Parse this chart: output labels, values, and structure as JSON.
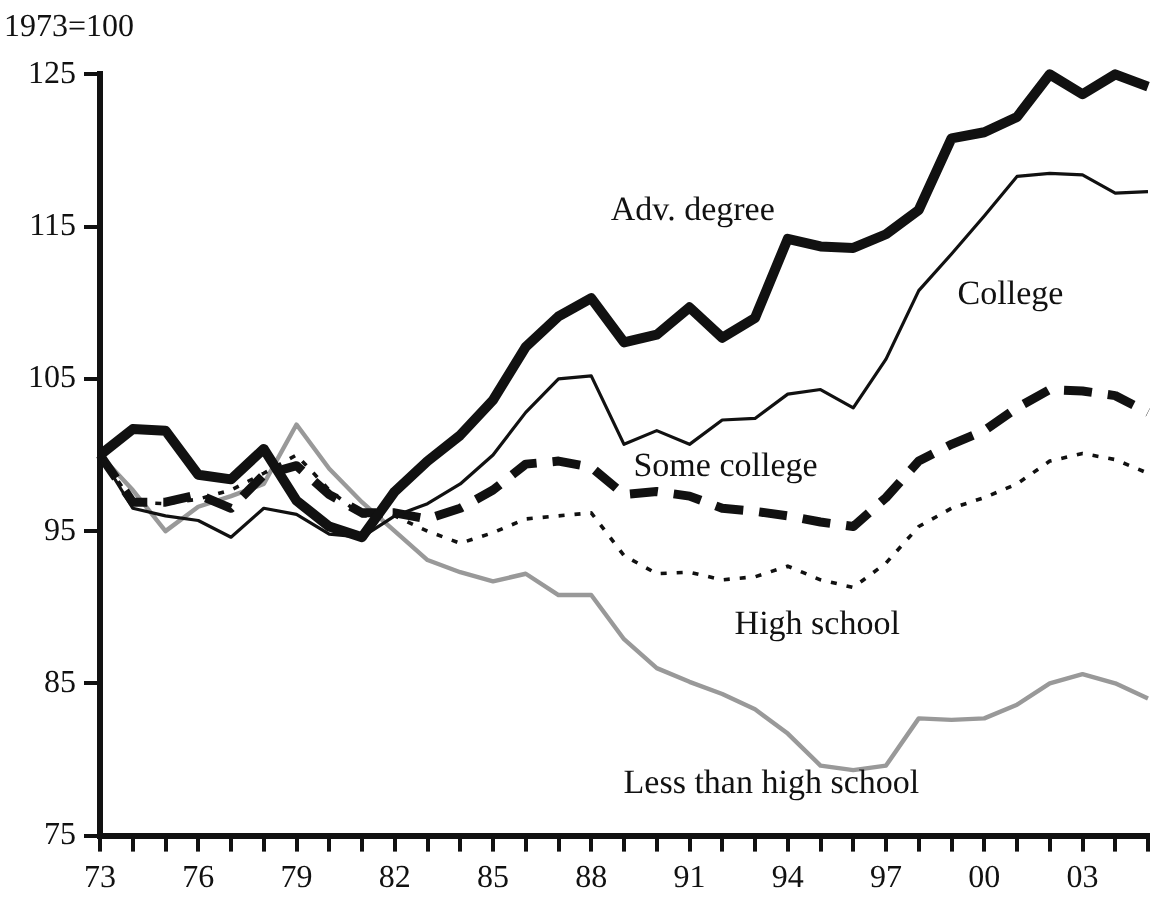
{
  "chart_data": {
    "type": "line",
    "ylabel": "1973=100",
    "x": [
      1973,
      1974,
      1975,
      1976,
      1977,
      1978,
      1979,
      1980,
      1981,
      1982,
      1983,
      1984,
      1985,
      1986,
      1987,
      1988,
      1989,
      1990,
      1991,
      1992,
      1993,
      1994,
      1995,
      1996,
      1997,
      1998,
      1999,
      2000,
      2001,
      2002,
      2003,
      2004,
      2005
    ],
    "xlim": [
      1973,
      2005
    ],
    "xticks": [
      {
        "value": 1973,
        "label": "73"
      },
      {
        "value": 1974,
        "label": null
      },
      {
        "value": 1975,
        "label": null
      },
      {
        "value": 1976,
        "label": "76"
      },
      {
        "value": 1977,
        "label": null
      },
      {
        "value": 1978,
        "label": null
      },
      {
        "value": 1979,
        "label": "79"
      },
      {
        "value": 1980,
        "label": null
      },
      {
        "value": 1981,
        "label": null
      },
      {
        "value": 1982,
        "label": "82"
      },
      {
        "value": 1983,
        "label": null
      },
      {
        "value": 1984,
        "label": null
      },
      {
        "value": 1985,
        "label": "85"
      },
      {
        "value": 1986,
        "label": null
      },
      {
        "value": 1987,
        "label": null
      },
      {
        "value": 1988,
        "label": "88"
      },
      {
        "value": 1989,
        "label": null
      },
      {
        "value": 1990,
        "label": null
      },
      {
        "value": 1991,
        "label": "91"
      },
      {
        "value": 1992,
        "label": null
      },
      {
        "value": 1993,
        "label": null
      },
      {
        "value": 1994,
        "label": "94"
      },
      {
        "value": 1995,
        "label": null
      },
      {
        "value": 1996,
        "label": null
      },
      {
        "value": 1997,
        "label": "97"
      },
      {
        "value": 1998,
        "label": null
      },
      {
        "value": 1999,
        "label": null
      },
      {
        "value": 2000,
        "label": "00"
      },
      {
        "value": 2001,
        "label": null
      },
      {
        "value": 2002,
        "label": null
      },
      {
        "value": 2003,
        "label": "03"
      },
      {
        "value": 2004,
        "label": null
      },
      {
        "value": 2005,
        "label": null
      }
    ],
    "ylim": [
      75,
      125
    ],
    "yticks": [
      75,
      85,
      95,
      105,
      115,
      125
    ],
    "grid": false,
    "legend": false,
    "marker": "none",
    "series": [
      {
        "name": "Adv. degree",
        "color": "#111111",
        "line_style": "solid",
        "values": [
          100,
          101.7,
          101.6,
          98.7,
          98.4,
          100.4,
          97.0,
          95.3,
          94.6,
          97.6,
          99.6,
          101.3,
          103.6,
          107.1,
          109.1,
          110.3,
          107.4,
          107.9,
          109.7,
          107.7,
          109.0,
          114.2,
          113.7,
          113.6,
          114.5,
          116.1,
          120.8,
          121.2,
          122.2,
          125.0,
          123.7,
          125.0,
          124.2
        ]
      },
      {
        "name": "College",
        "color": "#111111",
        "line_style": "solid",
        "values": [
          100,
          96.5,
          96.0,
          95.7,
          94.6,
          96.5,
          96.1,
          94.8,
          94.6,
          96.0,
          96.8,
          98.1,
          100.0,
          102.8,
          105.0,
          105.2,
          100.7,
          101.6,
          100.7,
          102.3,
          102.4,
          104.0,
          104.3,
          103.1,
          106.3,
          110.8,
          113.2,
          115.7,
          118.3,
          118.5,
          118.4,
          117.2,
          117.3
        ]
      },
      {
        "name": "Some college",
        "color": "#111111",
        "line_style": "dashed",
        "values": [
          100,
          96.9,
          96.9,
          97.4,
          96.5,
          98.7,
          99.3,
          97.4,
          96.2,
          96.2,
          95.8,
          96.5,
          97.7,
          99.4,
          99.6,
          99.2,
          97.4,
          97.6,
          97.3,
          96.5,
          96.3,
          96.0,
          95.6,
          95.3,
          97.2,
          99.6,
          100.7,
          101.6,
          103.1,
          104.3,
          104.2,
          103.9,
          102.8
        ]
      },
      {
        "name": "High school",
        "color": "#111111",
        "line_style": "dotted",
        "values": [
          100,
          96.9,
          96.8,
          97.1,
          97.7,
          98.8,
          100.0,
          97.7,
          96.0,
          96.0,
          95.0,
          94.2,
          94.9,
          95.8,
          96.0,
          96.2,
          93.4,
          92.2,
          92.3,
          91.8,
          92.0,
          92.7,
          91.8,
          91.3,
          92.9,
          95.3,
          96.5,
          97.2,
          98.1,
          99.6,
          100.1,
          99.7,
          98.8
        ]
      },
      {
        "name": "Less than high school",
        "color": "#999999",
        "line_style": "solid",
        "values": [
          100,
          97.7,
          95.0,
          96.6,
          97.3,
          98.1,
          102.0,
          99.1,
          96.9,
          95.0,
          93.1,
          92.3,
          91.7,
          92.2,
          90.8,
          90.8,
          87.9,
          86.0,
          85.1,
          84.3,
          83.3,
          81.7,
          79.6,
          79.3,
          79.6,
          82.7,
          82.6,
          82.7,
          83.6,
          85.0,
          85.6,
          85.0,
          84.0
        ]
      }
    ]
  }
}
